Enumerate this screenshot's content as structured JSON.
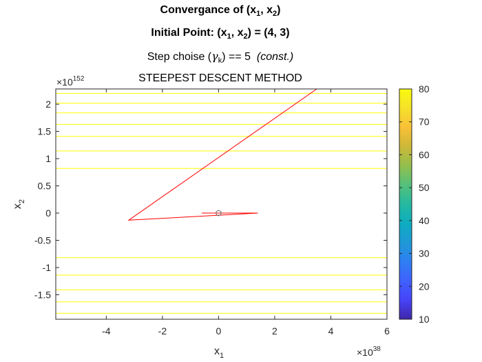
{
  "titles": {
    "line1": "Convergance of (x",
    "line1_sub1": "1",
    "line1_mid": ", x",
    "line1_sub2": "2",
    "line1_end": ")",
    "line2": "Initial Point: (x",
    "line2_sub1": "1",
    "line2_mid": ", x",
    "line2_sub2": "2",
    "line2_end": ") = (4, 3)",
    "line3": "Step choise (",
    "line3_gamma": "γ",
    "line3_sub": "k",
    "line3_end": ") == 5",
    "line3_italic": "(const.)",
    "line4": "STEEPEST DESCENT METHOD"
  },
  "chart_data": {
    "type": "line",
    "xlabel": "x",
    "xlabel_sub": "1",
    "ylabel": "x",
    "ylabel_sub": "2",
    "x_exponent_label": "×10",
    "x_exponent": "38",
    "y_exponent_label": "×10",
    "y_exponent": "152",
    "xlim": [
      -5.8,
      6
    ],
    "ylim": [
      -1.95,
      2.28
    ],
    "x_ticks": [
      -4,
      -2,
      0,
      2,
      4,
      6
    ],
    "x_tick_labels": [
      "-4",
      "-2",
      "0",
      "2",
      "4",
      "6"
    ],
    "y_ticks": [
      -1.5,
      -1,
      -0.5,
      0,
      0.5,
      1,
      1.5,
      2
    ],
    "y_tick_labels": [
      "-1.5",
      "-1",
      "-0.5",
      "0",
      "0.5",
      "1",
      "1.5",
      "2"
    ],
    "contour_levels_y": [
      -1.84,
      -1.63,
      -1.41,
      -1.14,
      -0.82,
      0.82,
      1.14,
      1.41,
      1.63,
      1.84,
      2.02,
      2.2
    ],
    "contour_color": "#ffff00",
    "path_color": "#ff0000",
    "path": {
      "x": [
        3.5,
        -3.2,
        1.4,
        -0.6,
        0.15
      ],
      "y": [
        2.28,
        -0.13,
        0.0,
        0.0,
        0.0
      ]
    },
    "start_marker": {
      "x": 0,
      "y": 0
    },
    "colorbar": {
      "min": 10,
      "max": 80,
      "ticks": [
        10,
        20,
        30,
        40,
        50,
        60,
        70,
        80
      ],
      "tick_labels": [
        "10",
        "20",
        "30",
        "40",
        "50",
        "60",
        "70",
        "80"
      ],
      "colormap": [
        "#3e26a8",
        "#4743f8",
        "#3f61fd",
        "#2e7ff3",
        "#1f99d6",
        "#0dadc0",
        "#25b9a0",
        "#54c07b",
        "#93bf4e",
        "#ccb838",
        "#f9c037",
        "#f5e12a",
        "#f9fb0e"
      ]
    }
  }
}
